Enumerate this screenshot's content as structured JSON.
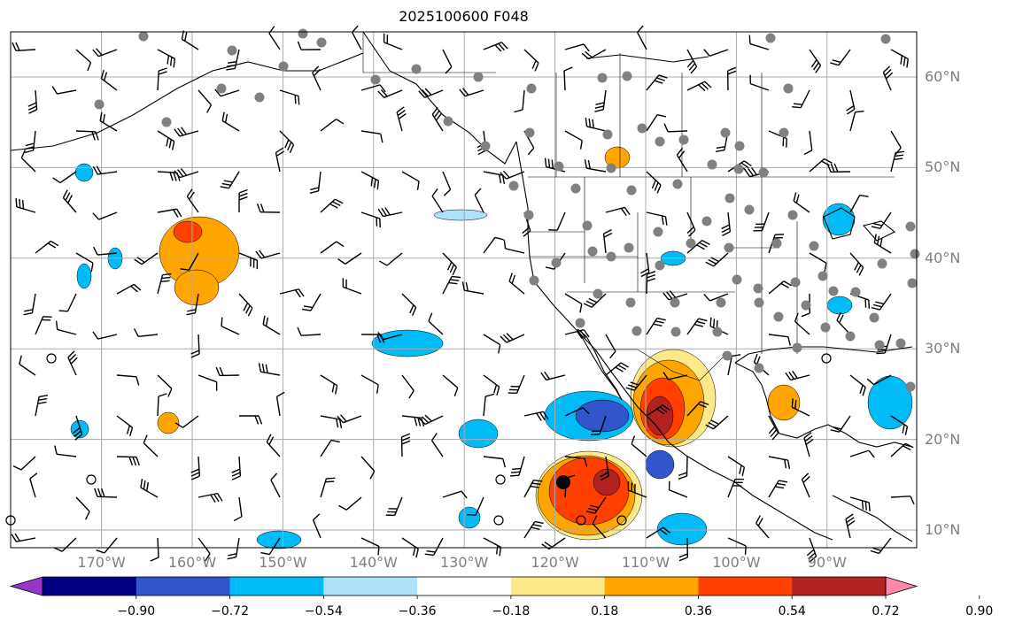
{
  "title": "2025100600 F048",
  "lat_labels": [
    {
      "label": "60°N",
      "lat": 60
    },
    {
      "label": "50°N",
      "lat": 50
    },
    {
      "label": "40°N",
      "lat": 40
    },
    {
      "label": "30°N",
      "lat": 30
    },
    {
      "label": "20°N",
      "lat": 20
    },
    {
      "label": "10°N",
      "lat": 10
    }
  ],
  "lon_labels": [
    {
      "label": "170°W",
      "lon": -170
    },
    {
      "label": "160°W",
      "lon": -160
    },
    {
      "label": "150°W",
      "lon": -150
    },
    {
      "label": "140°W",
      "lon": -140
    },
    {
      "label": "130°W",
      "lon": -130
    },
    {
      "label": "120°W",
      "lon": -120
    },
    {
      "label": "110°W",
      "lon": -110
    },
    {
      "label": "100°W",
      "lon": -100
    },
    {
      "label": "90°W",
      "lon": -90
    }
  ],
  "colorbar": {
    "ticks": [
      "−0.90",
      "−0.72",
      "−0.54",
      "−0.36",
      "−0.18",
      "0.18",
      "0.36",
      "0.54",
      "0.72",
      "0.90"
    ],
    "colors": [
      "#9933cc",
      "#000080",
      "#3355cc",
      "#00bbf5",
      "#aee2fb",
      "#ffffff",
      "#fde88a",
      "#ffa500",
      "#ff4000",
      "#b22222",
      "#ff88aa"
    ]
  },
  "colors": {
    "grid": "#aaaaaa",
    "coast": "#000000",
    "station": "#808080"
  },
  "map_extent": {
    "lon": [
      -180,
      -80
    ],
    "lat": [
      8,
      65
    ]
  }
}
